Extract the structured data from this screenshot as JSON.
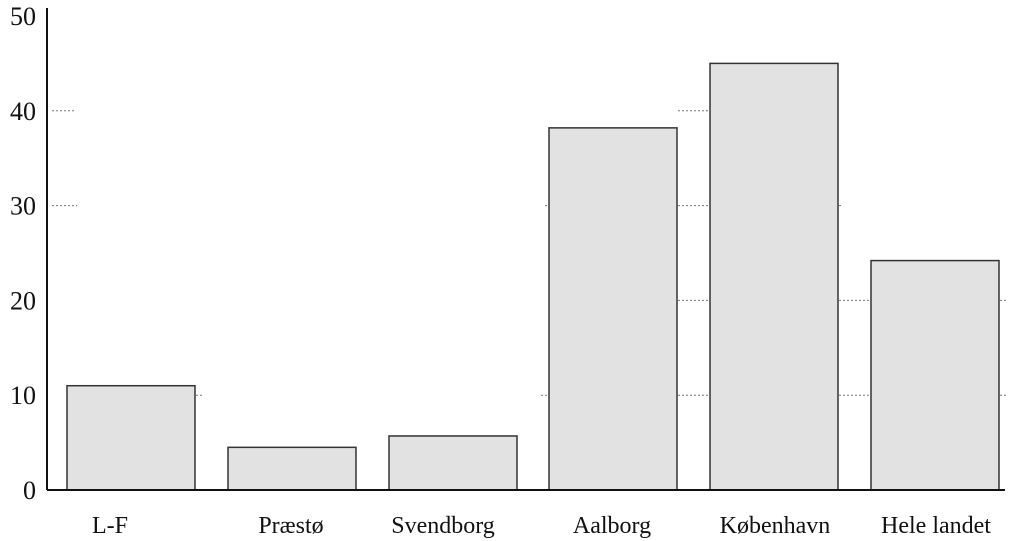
{
  "chart_data": {
    "type": "bar",
    "title": "",
    "xlabel": "",
    "ylabel": "",
    "categories": [
      "L-F",
      "Præstø",
      "Svendborg",
      "Aalborg",
      "København",
      "Hele landet"
    ],
    "values": [
      11,
      4.5,
      5.7,
      38.2,
      45,
      24.2
    ],
    "ylim": [
      0,
      50
    ],
    "yticks": [
      "0",
      "10",
      "20",
      "30",
      "40",
      "50"
    ],
    "grid": "dotted horizontal segments between bars",
    "legend": "none",
    "colors": {
      "bar_fill": "#e2e2e2",
      "bar_stroke": "#333333",
      "axis": "#111111",
      "grid": "#777777"
    }
  }
}
